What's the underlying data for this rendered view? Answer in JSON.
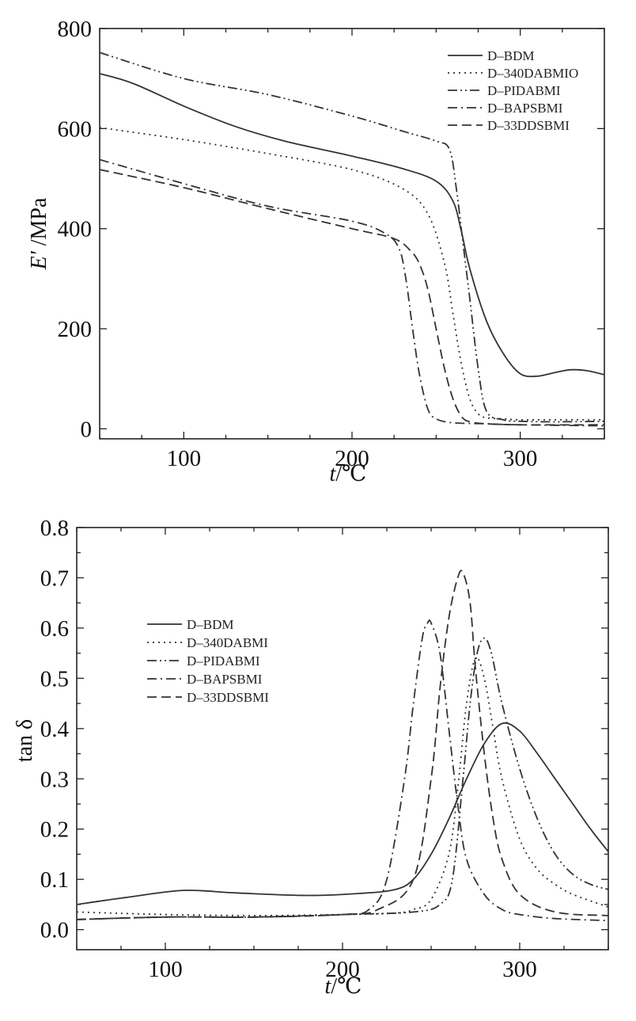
{
  "chart_data": [
    {
      "type": "line",
      "xlabel_var": "t",
      "xlabel_unit": "/℃",
      "ylabel_var": "E'",
      "ylabel_unit": " /MPa",
      "xlim": [
        50,
        350
      ],
      "ylim": [
        -20,
        800
      ],
      "xticks": [
        100,
        200,
        300
      ],
      "yticks": [
        0,
        200,
        400,
        600,
        800
      ],
      "legend_position": "top-right",
      "series": [
        {
          "name": "D–BDM",
          "dash": "solid",
          "x": [
            50,
            70,
            100,
            130,
            160,
            200,
            230,
            250,
            260,
            265,
            270,
            280,
            290,
            300,
            310,
            320,
            330,
            340,
            350
          ],
          "y": [
            710,
            690,
            645,
            605,
            575,
            545,
            520,
            495,
            455,
            395,
            320,
            215,
            150,
            110,
            105,
            112,
            118,
            116,
            108
          ]
        },
        {
          "name": "D–340DABMIO",
          "dash": "dot",
          "x": [
            50,
            100,
            150,
            200,
            230,
            245,
            255,
            260,
            265,
            270,
            275,
            280,
            290,
            300,
            320,
            350
          ],
          "y": [
            602,
            578,
            550,
            518,
            480,
            430,
            330,
            230,
            130,
            60,
            30,
            22,
            20,
            18,
            18,
            18
          ]
        },
        {
          "name": "D–PIDABMI",
          "dash": "dashdotdot",
          "x": [
            50,
            100,
            150,
            200,
            230,
            250,
            258,
            262,
            266,
            270,
            275,
            280,
            290,
            300,
            320,
            350
          ],
          "y": [
            752,
            700,
            668,
            625,
            595,
            575,
            558,
            480,
            370,
            260,
            120,
            35,
            18,
            15,
            14,
            15
          ]
        },
        {
          "name": "D–BAPSBMI",
          "dash": "dashdot",
          "x": [
            50,
            100,
            150,
            200,
            220,
            228,
            232,
            236,
            240,
            245,
            250,
            260,
            280,
            300,
            350
          ],
          "y": [
            538,
            490,
            445,
            415,
            390,
            360,
            300,
            200,
            110,
            40,
            20,
            12,
            10,
            8,
            6
          ]
        },
        {
          "name": "D–33DDSBMI",
          "dash": "dash",
          "x": [
            50,
            100,
            150,
            200,
            225,
            235,
            240,
            245,
            250,
            255,
            260,
            265,
            270,
            280,
            300,
            350
          ],
          "y": [
            518,
            482,
            440,
            400,
            380,
            355,
            330,
            280,
            200,
            120,
            60,
            25,
            14,
            10,
            8,
            8
          ]
        }
      ]
    },
    {
      "type": "line",
      "xlabel_var": "t",
      "xlabel_unit": "/℃",
      "ylabel_var": "tan δ",
      "ylabel_unit": "",
      "xlim": [
        50,
        350
      ],
      "ylim": [
        -0.04,
        0.8
      ],
      "xticks": [
        100,
        200,
        300
      ],
      "yticks": [
        0.0,
        0.1,
        0.2,
        0.3,
        0.4,
        0.5,
        0.6,
        0.7,
        0.8
      ],
      "ytick_labels": [
        "0.0",
        "0.1",
        "0.2",
        "0.3",
        "0.4",
        "0.5",
        "0.6",
        "0.7",
        "0.8"
      ],
      "legend_position": "left",
      "series": [
        {
          "name": "D–BDM",
          "dash": "solid",
          "x": [
            50,
            80,
            110,
            140,
            180,
            210,
            230,
            240,
            250,
            260,
            270,
            280,
            290,
            300,
            310,
            320,
            330,
            340,
            350
          ],
          "y": [
            0.05,
            0.065,
            0.078,
            0.073,
            0.068,
            0.072,
            0.08,
            0.1,
            0.15,
            0.22,
            0.3,
            0.37,
            0.41,
            0.395,
            0.35,
            0.3,
            0.25,
            0.2,
            0.155
          ]
        },
        {
          "name": "D–340DABMI",
          "dash": "dot",
          "x": [
            50,
            100,
            150,
            200,
            230,
            240,
            250,
            260,
            265,
            270,
            275,
            280,
            285,
            290,
            300,
            310,
            320,
            330,
            350
          ],
          "y": [
            0.035,
            0.03,
            0.028,
            0.03,
            0.033,
            0.04,
            0.06,
            0.15,
            0.28,
            0.45,
            0.54,
            0.5,
            0.4,
            0.3,
            0.18,
            0.12,
            0.09,
            0.07,
            0.045
          ]
        },
        {
          "name": "D–PIDABMI",
          "dash": "dashdotdot",
          "x": [
            50,
            100,
            150,
            200,
            240,
            255,
            262,
            268,
            272,
            276,
            280,
            284,
            290,
            300,
            310,
            320,
            330,
            340,
            350
          ],
          "y": [
            0.02,
            0.025,
            0.025,
            0.03,
            0.035,
            0.05,
            0.1,
            0.3,
            0.45,
            0.55,
            0.58,
            0.55,
            0.45,
            0.32,
            0.22,
            0.15,
            0.11,
            0.09,
            0.08
          ]
        },
        {
          "name": "D–BAPSBMI",
          "dash": "dashdot",
          "x": [
            50,
            100,
            150,
            200,
            215,
            225,
            235,
            240,
            245,
            248,
            250,
            255,
            260,
            265,
            270,
            280,
            290,
            300,
            320,
            350
          ],
          "y": [
            0.02,
            0.025,
            0.025,
            0.03,
            0.04,
            0.1,
            0.3,
            0.45,
            0.58,
            0.61,
            0.61,
            0.55,
            0.4,
            0.25,
            0.14,
            0.07,
            0.04,
            0.03,
            0.022,
            0.018
          ]
        },
        {
          "name": "D–33DDSBMI",
          "dash": "dash",
          "x": [
            50,
            100,
            150,
            200,
            220,
            240,
            250,
            255,
            260,
            265,
            268,
            272,
            275,
            280,
            285,
            290,
            300,
            320,
            350
          ],
          "y": [
            0.02,
            0.025,
            0.025,
            0.03,
            0.04,
            0.1,
            0.3,
            0.48,
            0.62,
            0.7,
            0.71,
            0.65,
            0.52,
            0.35,
            0.22,
            0.14,
            0.07,
            0.035,
            0.028
          ]
        }
      ]
    }
  ]
}
